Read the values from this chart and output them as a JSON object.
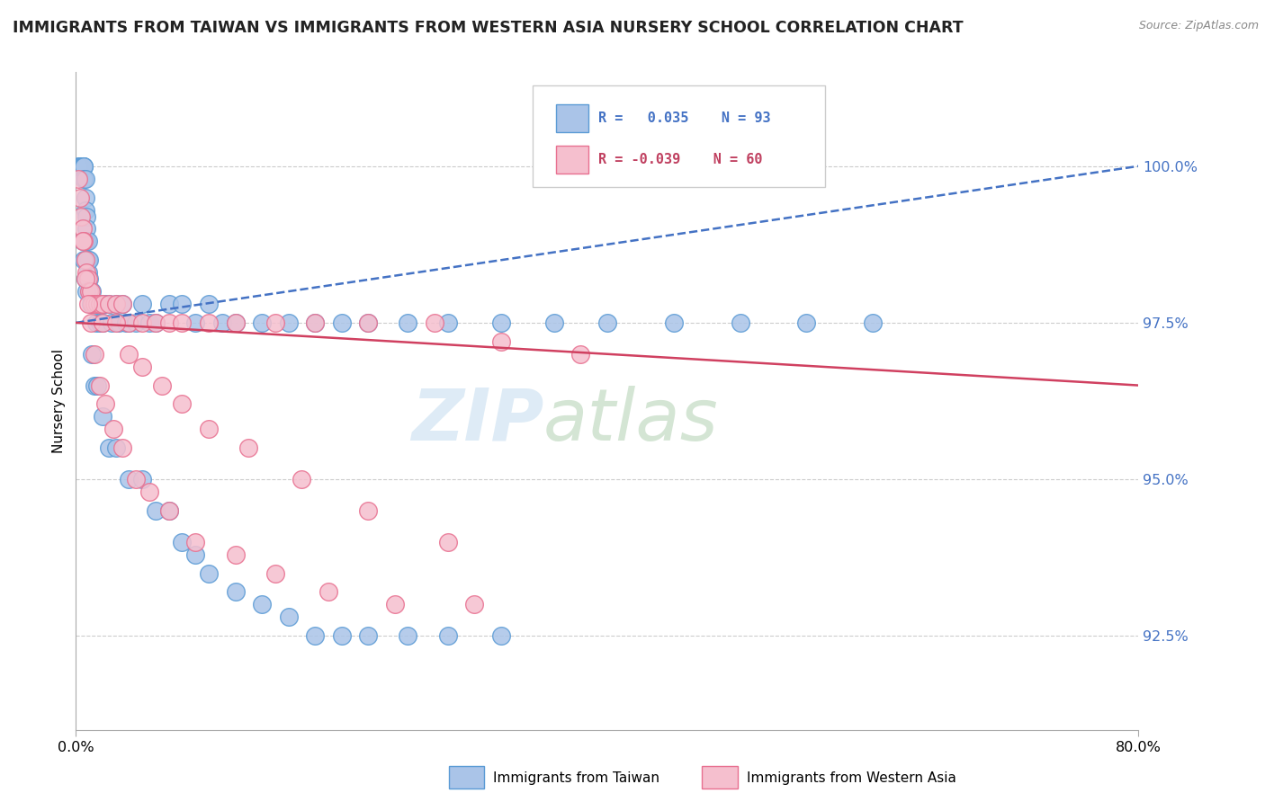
{
  "title": "IMMIGRANTS FROM TAIWAN VS IMMIGRANTS FROM WESTERN ASIA NURSERY SCHOOL CORRELATION CHART",
  "source": "Source: ZipAtlas.com",
  "ylabel": "Nursery School",
  "xlim": [
    0.0,
    80.0
  ],
  "ylim": [
    91.0,
    101.5
  ],
  "ytick_labels": [
    "100.0%",
    "97.5%",
    "95.0%",
    "92.5%"
  ],
  "ytick_values": [
    100.0,
    97.5,
    95.0,
    92.5
  ],
  "blue_color": "#aac4e8",
  "pink_color": "#f5bfce",
  "blue_edge": "#5b9bd5",
  "pink_edge": "#e87090",
  "trend_blue": "#4472c4",
  "trend_pink": "#d04060",
  "bottom_legend_blue": "Immigrants from Taiwan",
  "bottom_legend_pink": "Immigrants from Western Asia",
  "taiwan_x": [
    0.2,
    0.3,
    0.3,
    0.4,
    0.4,
    0.5,
    0.5,
    0.5,
    0.6,
    0.6,
    0.6,
    0.7,
    0.7,
    0.7,
    0.8,
    0.8,
    0.8,
    0.9,
    0.9,
    0.9,
    1.0,
    1.0,
    1.0,
    1.1,
    1.1,
    1.2,
    1.2,
    1.3,
    1.4,
    1.5,
    1.6,
    1.7,
    1.8,
    2.0,
    2.0,
    2.2,
    2.5,
    2.7,
    3.0,
    3.2,
    3.5,
    3.8,
    4.0,
    4.5,
    5.0,
    5.5,
    6.0,
    7.0,
    8.0,
    9.0,
    10.0,
    11.0,
    12.0,
    14.0,
    16.0,
    18.0,
    20.0,
    22.0,
    25.0,
    28.0,
    32.0,
    36.0,
    40.0,
    45.0,
    50.0,
    55.0,
    60.0,
    1.2,
    1.4,
    1.6,
    2.0,
    2.5,
    3.0,
    4.0,
    5.0,
    6.0,
    7.0,
    8.0,
    9.0,
    10.0,
    12.0,
    14.0,
    16.0,
    18.0,
    20.0,
    22.0,
    25.0,
    28.0,
    32.0,
    0.5,
    0.6,
    0.7,
    0.8
  ],
  "taiwan_y": [
    100.0,
    100.0,
    100.0,
    100.0,
    100.0,
    100.0,
    100.0,
    100.0,
    100.0,
    100.0,
    99.8,
    99.8,
    99.5,
    99.3,
    99.2,
    99.0,
    98.8,
    98.8,
    98.5,
    98.3,
    98.5,
    98.2,
    98.0,
    98.0,
    97.8,
    98.0,
    97.8,
    97.8,
    97.8,
    97.5,
    97.8,
    97.8,
    97.5,
    97.8,
    97.5,
    97.8,
    97.8,
    97.5,
    97.8,
    97.5,
    97.8,
    97.5,
    97.5,
    97.5,
    97.8,
    97.5,
    97.5,
    97.8,
    97.8,
    97.5,
    97.8,
    97.5,
    97.5,
    97.5,
    97.5,
    97.5,
    97.5,
    97.5,
    97.5,
    97.5,
    97.5,
    97.5,
    97.5,
    97.5,
    97.5,
    97.5,
    97.5,
    97.0,
    96.5,
    96.5,
    96.0,
    95.5,
    95.5,
    95.0,
    95.0,
    94.5,
    94.5,
    94.0,
    93.8,
    93.5,
    93.2,
    93.0,
    92.8,
    92.5,
    92.5,
    92.5,
    92.5,
    92.5,
    92.5,
    98.8,
    98.5,
    98.2,
    98.0
  ],
  "western_x": [
    0.2,
    0.3,
    0.4,
    0.5,
    0.6,
    0.7,
    0.8,
    0.9,
    1.0,
    1.1,
    1.2,
    1.4,
    1.6,
    1.8,
    2.0,
    2.5,
    3.0,
    3.5,
    4.0,
    5.0,
    6.0,
    7.0,
    8.0,
    10.0,
    12.0,
    15.0,
    18.0,
    22.0,
    27.0,
    32.0,
    38.0,
    0.5,
    0.7,
    0.9,
    1.1,
    1.4,
    1.8,
    2.2,
    2.8,
    3.5,
    4.5,
    5.5,
    7.0,
    9.0,
    12.0,
    15.0,
    19.0,
    24.0,
    30.0,
    2.0,
    3.0,
    4.0,
    5.0,
    6.5,
    8.0,
    10.0,
    13.0,
    17.0,
    22.0,
    28.0
  ],
  "western_y": [
    99.8,
    99.5,
    99.2,
    99.0,
    98.8,
    98.5,
    98.3,
    98.2,
    98.0,
    98.0,
    97.8,
    97.8,
    97.8,
    97.8,
    97.8,
    97.8,
    97.8,
    97.8,
    97.5,
    97.5,
    97.5,
    97.5,
    97.5,
    97.5,
    97.5,
    97.5,
    97.5,
    97.5,
    97.5,
    97.2,
    97.0,
    98.8,
    98.2,
    97.8,
    97.5,
    97.0,
    96.5,
    96.2,
    95.8,
    95.5,
    95.0,
    94.8,
    94.5,
    94.0,
    93.8,
    93.5,
    93.2,
    93.0,
    93.0,
    97.5,
    97.5,
    97.0,
    96.8,
    96.5,
    96.2,
    95.8,
    95.5,
    95.0,
    94.5,
    94.0
  ]
}
